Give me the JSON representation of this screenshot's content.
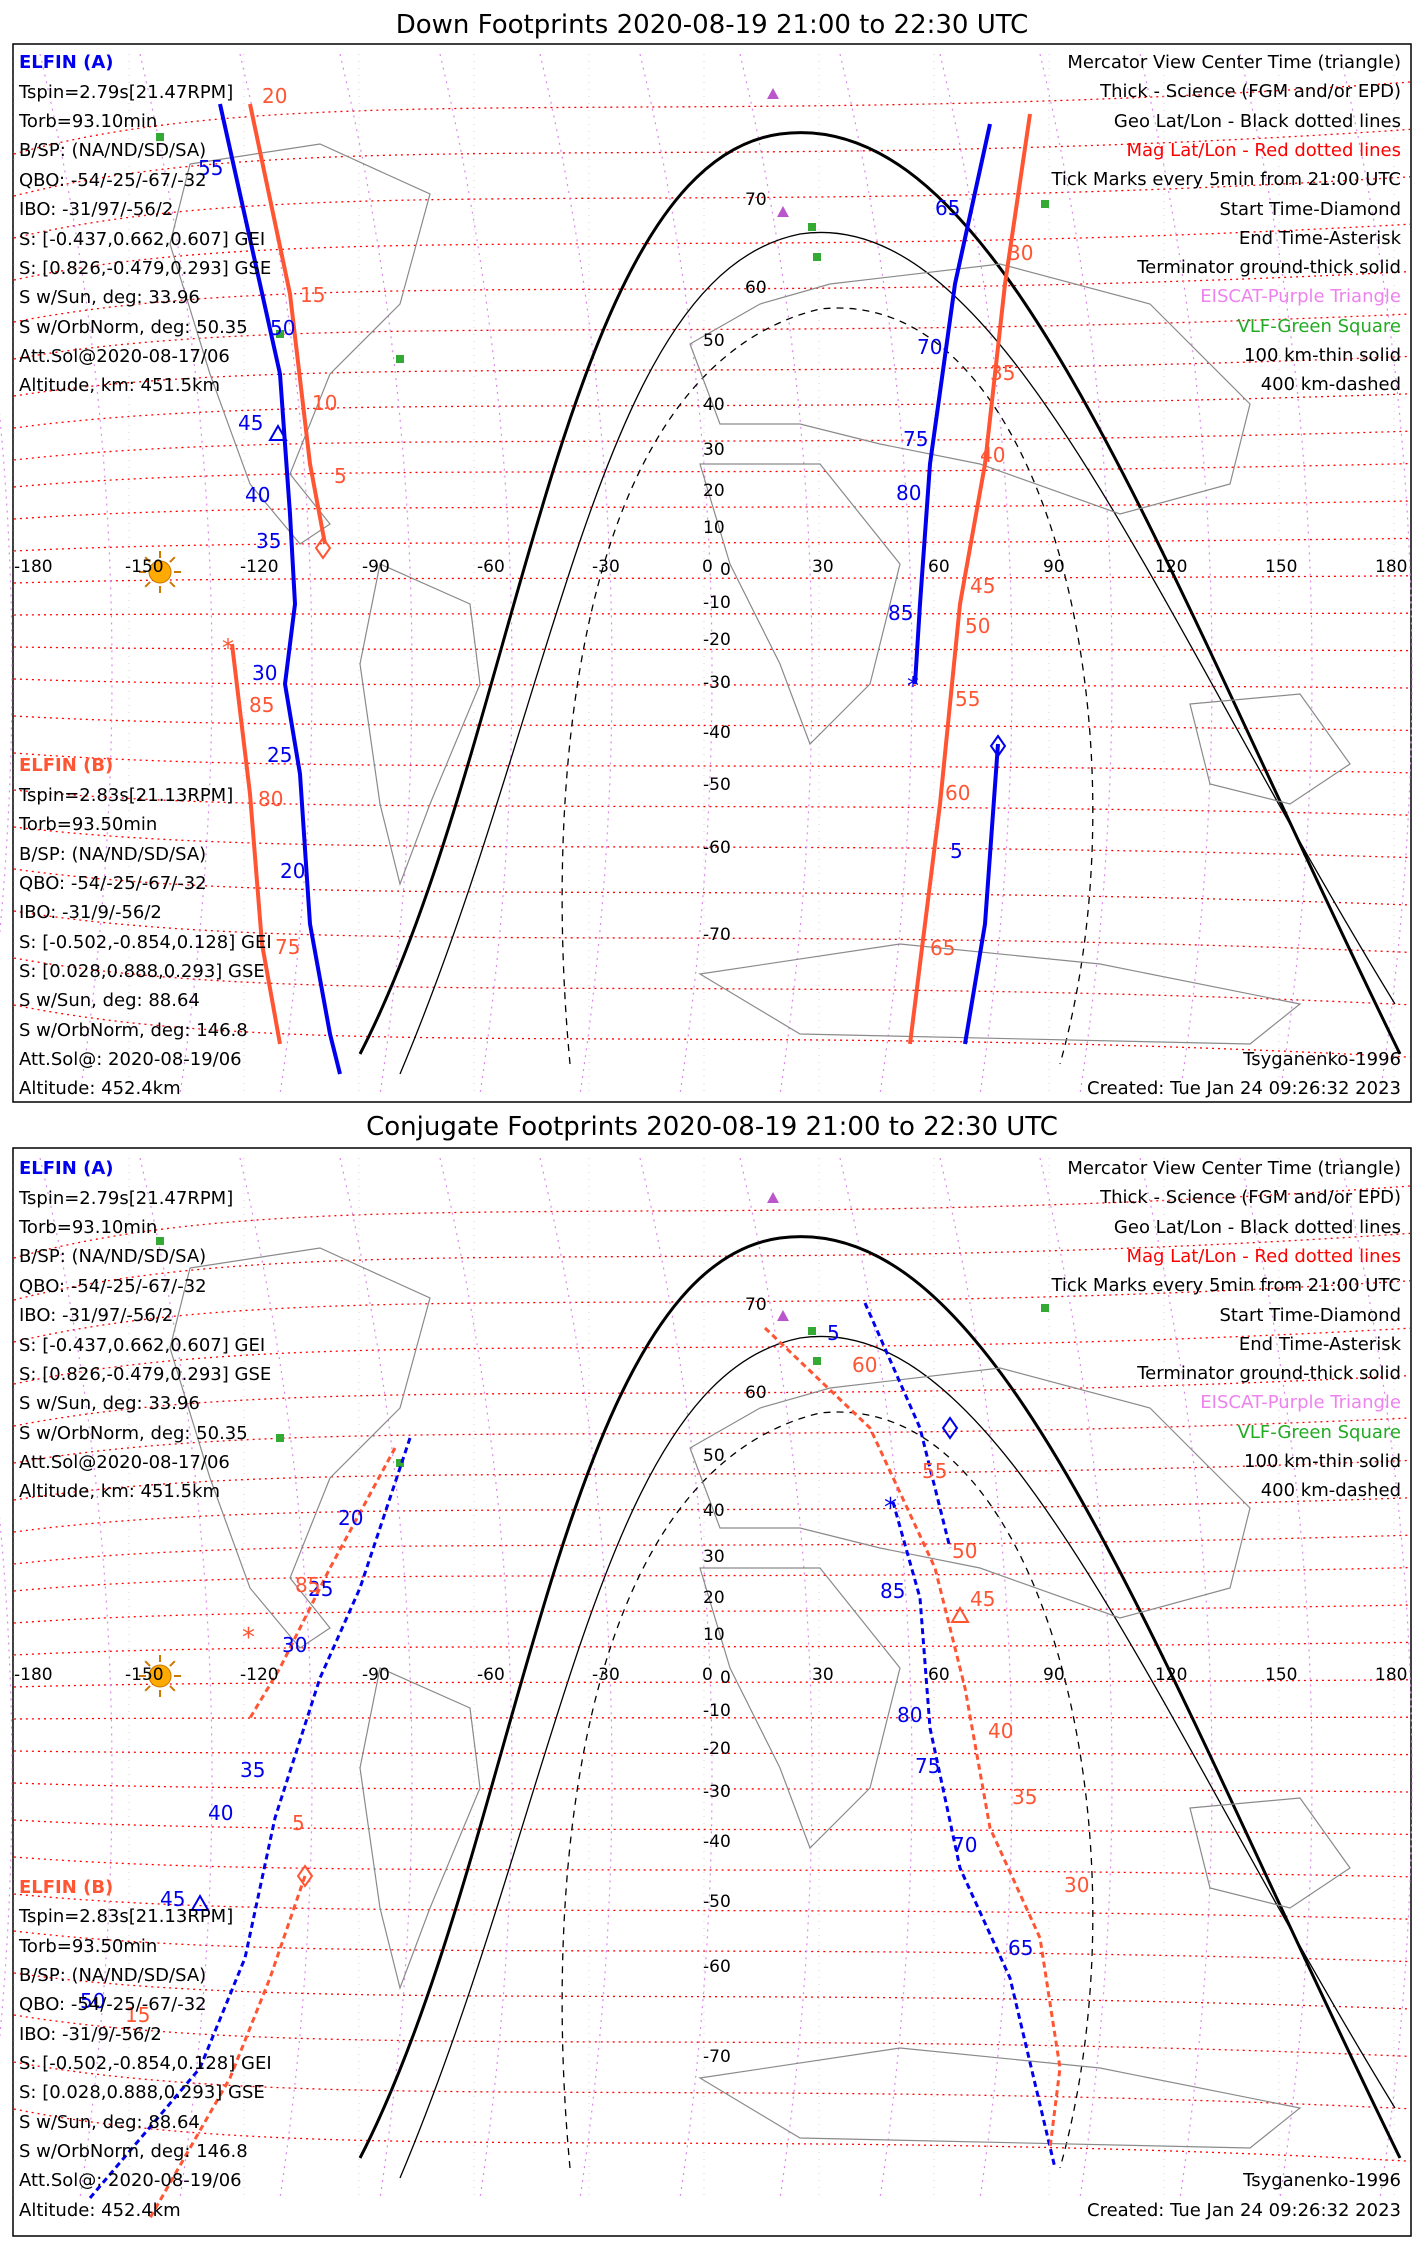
{
  "panels": [
    {
      "title": "Down Footprints 2020-08-19 21:00 to 22:30 UTC",
      "left_a": {
        "name": "ELFIN (A)",
        "lines": [
          "Tspin=2.79s[21.47RPM]",
          "Torb=93.10min",
          "B/SP: (NA/ND/SD/SA)",
          "QBO: -54/-25/-67/-32",
          "IBO: -31/97/-56/2",
          "S: [-0.437,0.662,0.607] GEI",
          "S: [0.826,-0.479,0.293] GSE",
          "S w/Sun, deg: 33.96",
          "S w/OrbNorm, deg: 50.35",
          "Att.Sol@2020-08-17/06",
          "Altitude, km: 451.5km"
        ]
      },
      "left_b": {
        "name": "ELFIN (B)",
        "lines": [
          "Tspin=2.83s[21.13RPM]",
          "Torb=93.50min",
          "B/SP: (NA/ND/SD/SA)",
          "QBO: -54/-25/-67/-32",
          "IBO: -31/9/-56/2",
          "S: [-0.502,-0.854,0.128] GEI",
          "S: [0.028,0.888,0.293] GSE",
          "S w/Sun, deg: 88.64",
          "S w/OrbNorm, deg: 146.8",
          "Att.Sol@: 2020-08-19/06",
          "Altitude: 452.4km"
        ]
      },
      "credit": "Tsyganenko-1996",
      "created": "Created: Tue Jan 24 09:26:32 2023"
    },
    {
      "title": "Conjugate Footprints 2020-08-19 21:00 to 22:30 UTC",
      "left_a": {
        "name": "ELFIN (A)",
        "lines": [
          "Tspin=2.79s[21.47RPM]",
          "Torb=93.10min",
          "B/SP: (NA/ND/SD/SA)",
          "QBO: -54/-25/-67/-32",
          "IBO: -31/97/-56/2",
          "S: [-0.437,0.662,0.607] GEI",
          "S: [0.826,-0.479,0.293] GSE",
          "S w/Sun, deg: 33.96",
          "S w/OrbNorm, deg: 50.35",
          "Att.Sol@2020-08-17/06",
          "Altitude, km: 451.5km"
        ]
      },
      "left_b": {
        "name": "ELFIN (B)",
        "lines": [
          "Tspin=2.83s[21.13RPM]",
          "Torb=93.50min",
          "B/SP: (NA/ND/SD/SA)",
          "QBO: -54/-25/-67/-32",
          "IBO: -31/9/-56/2",
          "S: [-0.502,-0.854,0.128] GEI",
          "S: [0.028,0.888,0.293] GSE",
          "S w/Sun, deg: 88.64",
          "S w/OrbNorm, deg: 146.8",
          "Att.Sol@: 2020-08-19/06",
          "Altitude: 452.4km"
        ]
      },
      "credit": "Tsyganenko-1996",
      "created": "Created: Tue Jan 24 09:26:32 2023"
    }
  ],
  "legend": [
    {
      "text": "Mercator View Center Time (triangle)",
      "color": "#000000"
    },
    {
      "text": "Thick - Science (FGM and/or EPD)",
      "color": "#000000"
    },
    {
      "text": "Geo Lat/Lon - Black dotted lines",
      "color": "#000000"
    },
    {
      "text": "Mag Lat/Lon - Red dotted lines",
      "color": "#ff0000"
    },
    {
      "text": "Tick Marks every 5min from 21:00 UTC",
      "color": "#000000"
    },
    {
      "text": "Start Time-Diamond",
      "color": "#000000"
    },
    {
      "text": "End Time-Asterisk",
      "color": "#000000"
    },
    {
      "text": "Terminator ground-thick solid",
      "color": "#000000"
    },
    {
      "text": "EISCAT-Purple Triangle",
      "color": "#ee82ee"
    },
    {
      "text": "VLF-Green Square",
      "color": "#22aa22"
    },
    {
      "text": "100 km-thin solid",
      "color": "#000000"
    },
    {
      "text": "400 km-dashed",
      "color": "#000000"
    }
  ],
  "lon_labels": [
    "-180",
    "-150",
    "-120",
    "-90",
    "-60",
    "-30",
    "0",
    "30",
    "60",
    "90",
    "120",
    "150",
    "180"
  ],
  "lat_labels": {
    "down": [
      "70",
      "60",
      "50",
      "40",
      "30",
      "20",
      "10",
      "0",
      "-10",
      "-20",
      "-30",
      "-40",
      "-50",
      "-60",
      "-70"
    ],
    "conj": [
      "70",
      "60",
      "50",
      "40",
      "30",
      "20",
      "10",
      "0",
      "-10",
      "-20",
      "-30",
      "-40",
      "-50",
      "-60",
      "-70"
    ]
  },
  "track_labels": {
    "down_a_west": [
      "55",
      "50",
      "45",
      "40",
      "35",
      "30",
      "25",
      "20"
    ],
    "down_b_west": [
      "20",
      "15",
      "10",
      "5",
      "85",
      "80",
      "75"
    ],
    "down_a_east": [
      "65",
      "70",
      "75",
      "80",
      "85",
      "5"
    ],
    "down_b_east": [
      "30",
      "35",
      "40",
      "45",
      "50",
      "55",
      "60",
      "65"
    ],
    "conj_a_west": [
      "20",
      "25",
      "30",
      "35",
      "40",
      "45",
      "50"
    ],
    "conj_b_west": [
      "85",
      "5",
      "15"
    ],
    "conj_a_east": [
      "5",
      "85",
      "80",
      "75",
      "70",
      "65"
    ],
    "conj_b_east": [
      "60",
      "55",
      "50",
      "45",
      "40",
      "35",
      "30"
    ]
  },
  "colors": {
    "elfin_a": "#0000ee",
    "elfin_b": "#ff5533",
    "mag_grid": "#ff0000",
    "geo_grid": "#888888",
    "eiscat": "#cc66cc",
    "vlf": "#33aa33",
    "sun": "#ffaa00",
    "frame": "#000000"
  }
}
